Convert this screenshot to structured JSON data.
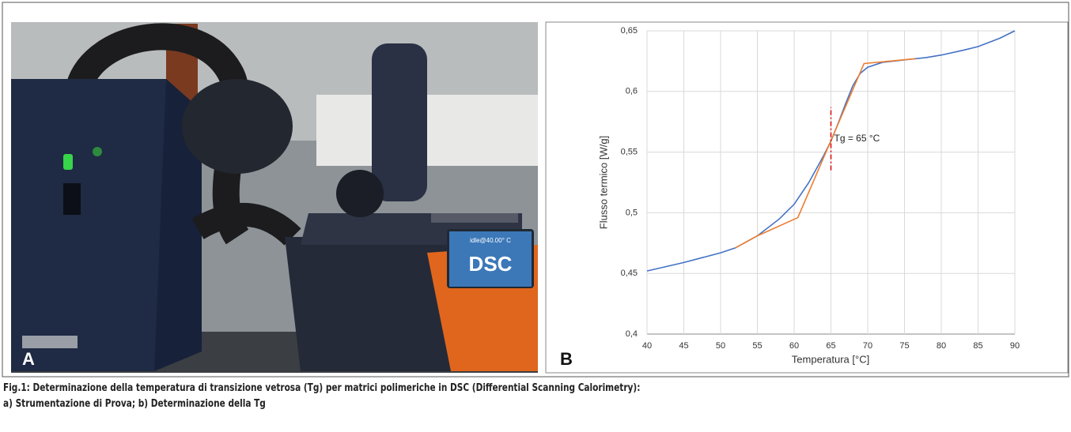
{
  "photo": {
    "screen_status": "idle@40.00° C",
    "screen_label": "DSC",
    "panel_label": "A"
  },
  "chart_data": {
    "type": "line",
    "panel_label": "B",
    "x_label": "Temperatura [°C]",
    "y_label": "Flusso termico [W/g]",
    "xlim": [
      40,
      90
    ],
    "xticks": [
      40,
      45,
      50,
      55,
      60,
      65,
      70,
      75,
      80,
      85,
      90
    ],
    "ylim": [
      0.4,
      0.65
    ],
    "yticks": [
      {
        "value": 0.4,
        "label": "0,4"
      },
      {
        "value": 0.45,
        "label": "0,45"
      },
      {
        "value": 0.5,
        "label": "0,5"
      },
      {
        "value": 0.55,
        "label": "0,55"
      },
      {
        "value": 0.6,
        "label": "0,6"
      },
      {
        "value": 0.65,
        "label": "0,65"
      }
    ],
    "grid": true,
    "series": [
      {
        "color": "#4472c4",
        "x": [
          40,
          45,
          50,
          52,
          55,
          58,
          60,
          62,
          64,
          65,
          66,
          67,
          68,
          69,
          70,
          72,
          75,
          78,
          80,
          83,
          85,
          88,
          90
        ],
        "values": [
          0.452,
          0.459,
          0.467,
          0.471,
          0.481,
          0.495,
          0.507,
          0.525,
          0.547,
          0.559,
          0.574,
          0.59,
          0.605,
          0.615,
          0.62,
          0.624,
          0.626,
          0.628,
          0.63,
          0.634,
          0.637,
          0.644,
          0.65
        ]
      },
      {
        "color": "#ed7d31",
        "x": [
          52,
          55,
          60.5,
          69.5,
          76.5
        ],
        "values": [
          0.471,
          0.481,
          0.496,
          0.623,
          0.627
        ]
      }
    ],
    "vline": {
      "x": 65,
      "y": [
        0.535,
        0.587
      ],
      "color": "#e00000"
    },
    "annotation": "Tg = 65 °C"
  },
  "caption": [
    "Fig.1: Determinazione della temperatura di transizione vetrosa (Tg) per matrici polimeriche in DSC (Differential Scanning Calorimetry):",
    "a) Strumentazione di Prova; b) Determinazione della Tg"
  ]
}
